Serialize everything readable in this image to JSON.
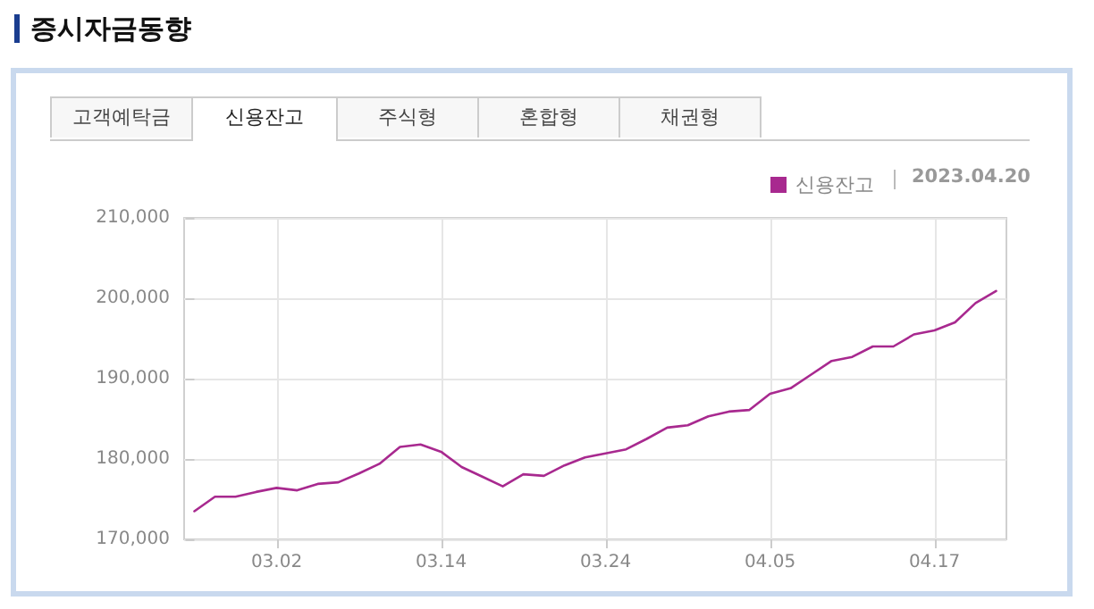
{
  "chart_data": {
    "type": "line",
    "title": "증시자금동향",
    "annotations": [
      "고객예탁금",
      "신용잔고",
      "주식형",
      "혼합형",
      "채권형",
      "2023.04.20"
    ],
    "categories": [
      null,
      null,
      null,
      null,
      "03.02",
      null,
      null,
      null,
      null,
      null,
      null,
      null,
      "03.14",
      null,
      null,
      null,
      null,
      null,
      null,
      null,
      "03.24",
      null,
      null,
      null,
      null,
      null,
      null,
      null,
      "04.05",
      null,
      null,
      null,
      null,
      null,
      null,
      null,
      "04.17",
      null,
      null,
      null
    ],
    "series": [
      {
        "name": "신용잔고",
        "color": "#a8298f",
        "values": [
          173500,
          175300,
          175300,
          175900,
          176400,
          176100,
          176900,
          177100,
          178200,
          179400,
          181500,
          181800,
          180900,
          179000,
          177800,
          176600,
          178100,
          177900,
          179200,
          180200,
          180700,
          181200,
          182500,
          183900,
          184200,
          185300,
          185900,
          186100,
          188100,
          188800,
          190500,
          192200,
          192700,
          194000,
          194000,
          195500,
          196000,
          197000,
          199400,
          200900
        ]
      }
    ],
    "ylim": [
      170000,
      210000
    ],
    "yticks": [
      {
        "value": 170000,
        "label": "170,000"
      },
      {
        "value": 180000,
        "label": "180,000"
      },
      {
        "value": 190000,
        "label": "190,000"
      },
      {
        "value": 200000,
        "label": "200,000"
      },
      {
        "value": 210000,
        "label": "210,000"
      }
    ],
    "grid": true,
    "legend": "top right",
    "marker": "none",
    "line_style": "solid"
  }
}
